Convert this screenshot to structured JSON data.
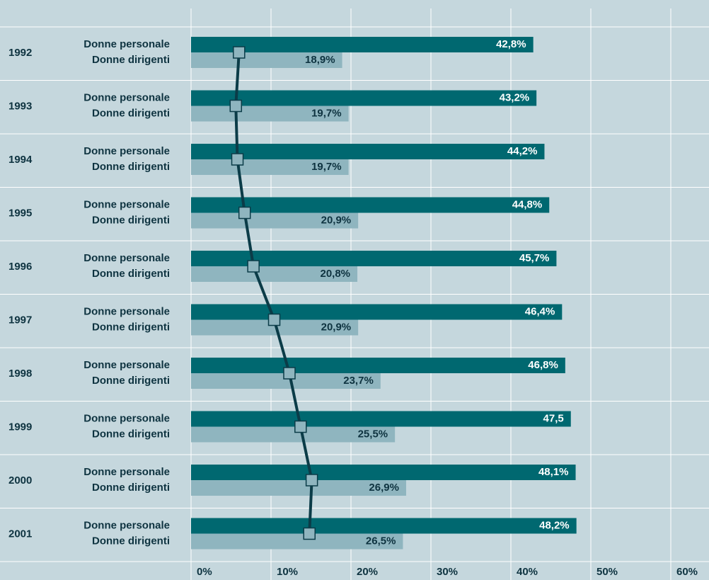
{
  "chart_data": {
    "type": "bar",
    "orientation": "horizontal",
    "categories": [
      "1992",
      "1993",
      "1994",
      "1995",
      "1996",
      "1997",
      "1998",
      "1999",
      "2000",
      "2001"
    ],
    "series": [
      {
        "name": "Donne personale",
        "color": "#006870",
        "values": [
          42.8,
          43.2,
          44.2,
          44.8,
          45.7,
          46.4,
          46.8,
          47.5,
          48.1,
          48.2
        ],
        "value_labels": [
          "42,8%",
          "43,2%",
          "44,2%",
          "44,8%",
          "45,7%",
          "46,4%",
          "46,8%",
          "47,5",
          "48,1%",
          "48,2%"
        ]
      },
      {
        "name": "Donne dirigenti",
        "color": "#8fb5bf",
        "values": [
          18.9,
          19.7,
          19.7,
          20.9,
          20.8,
          20.9,
          23.7,
          25.5,
          26.9,
          26.5
        ],
        "value_labels": [
          "18,9%",
          "19,7%",
          "19,7%",
          "20,9%",
          "20,8%",
          "20,9%",
          "23,7%",
          "25,5%",
          "26,9%",
          "26,5%"
        ]
      },
      {
        "type": "line",
        "color": "#0b3c48",
        "marker_color": "#8fb5bf",
        "values": [
          6.0,
          5.6,
          5.8,
          6.7,
          7.8,
          10.4,
          12.3,
          13.7,
          15.1,
          14.8
        ]
      }
    ],
    "xlim": [
      0,
      60
    ],
    "xticks": [
      {
        "value": 0,
        "label": "0%"
      },
      {
        "value": 10,
        "label": "10%"
      },
      {
        "value": 20,
        "label": "20%"
      },
      {
        "value": 30,
        "label": "30%"
      },
      {
        "value": 40,
        "label": "40%"
      },
      {
        "value": 50,
        "label": "50%"
      },
      {
        "value": 60,
        "label": "60%"
      }
    ],
    "grid": true
  }
}
